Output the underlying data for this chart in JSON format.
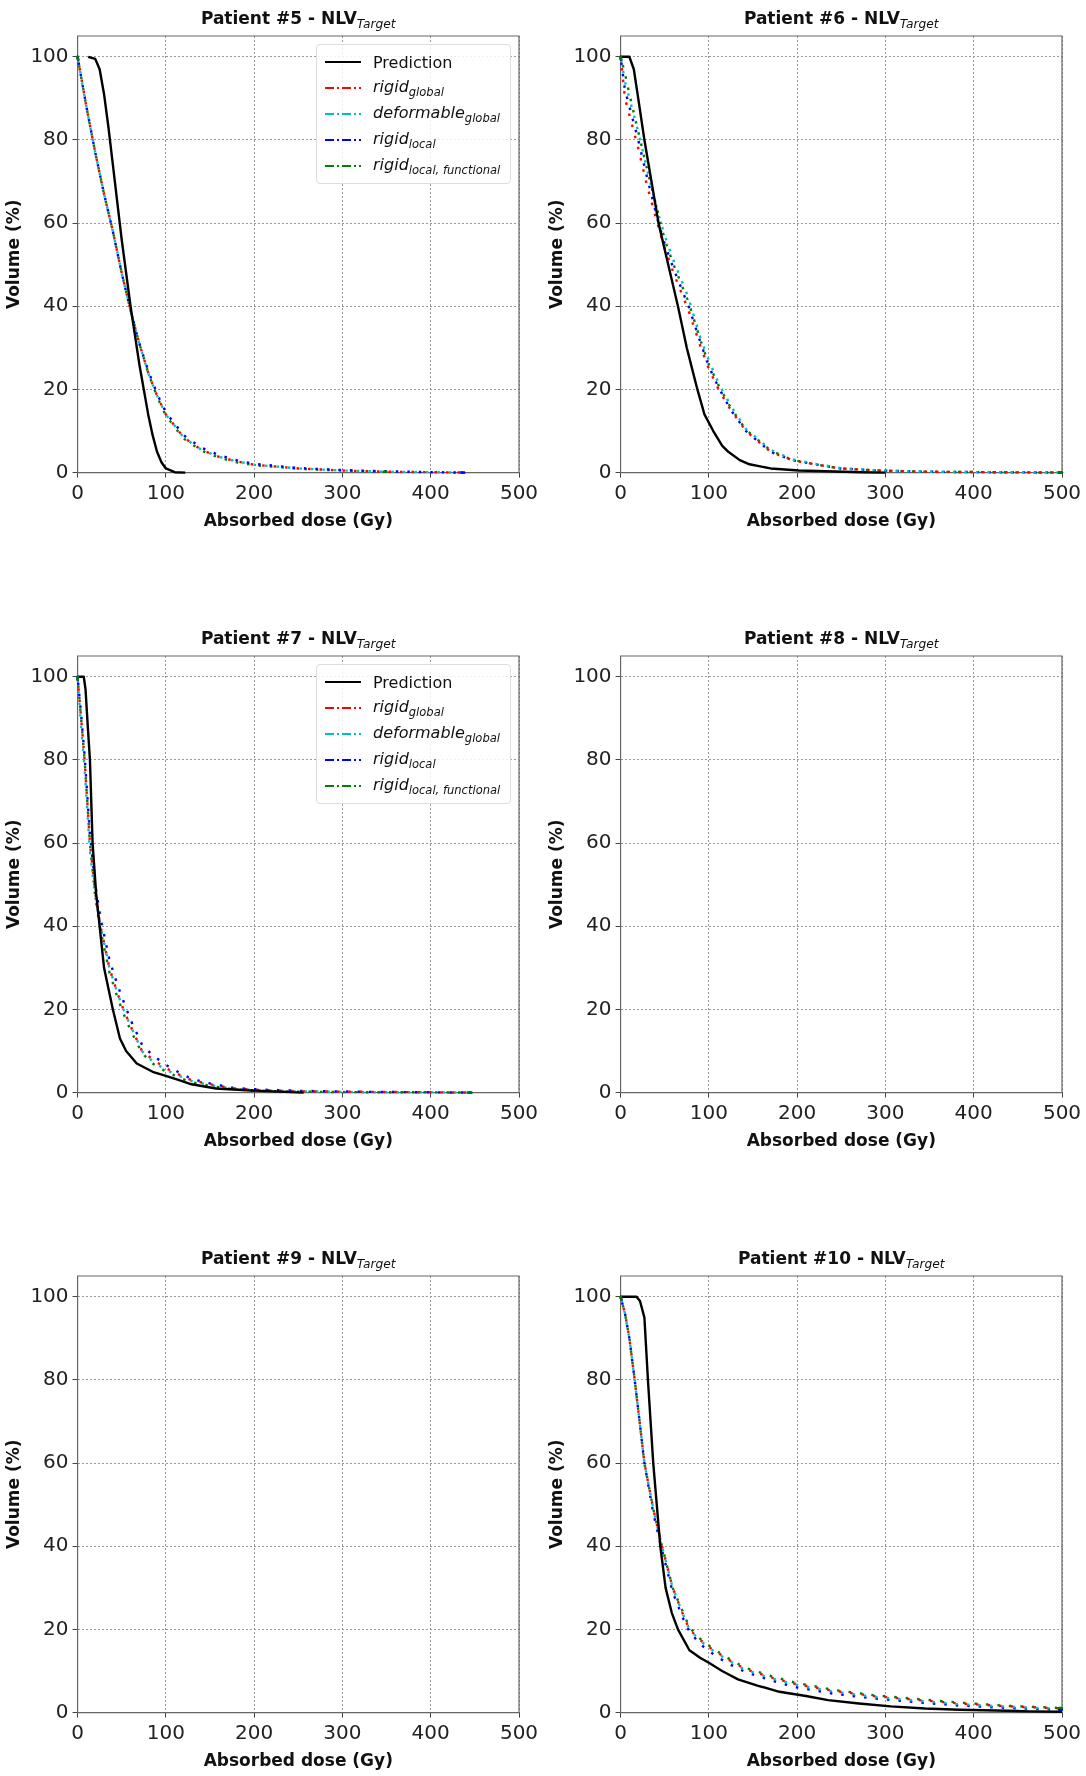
{
  "chart_data": [
    {
      "type": "line",
      "title": "Patient #5 - NLV$_{Target}$",
      "xlabel": "Absorbed dose (Gy)",
      "ylabel": "Volume (%)",
      "xlim": [
        0,
        500
      ],
      "ylim": [
        0,
        105
      ],
      "xticks": [
        0,
        100,
        200,
        300,
        400,
        500
      ],
      "yticks": [
        0,
        20,
        40,
        60,
        80,
        100
      ],
      "grid": true,
      "legend": "top right",
      "series": [
        {
          "name": "Prediction",
          "color": "#000000",
          "line_style": "solid",
          "x": [
            12,
            20,
            25,
            30,
            35,
            40,
            45,
            50,
            55,
            60,
            65,
            70,
            75,
            80,
            85,
            90,
            95,
            100,
            110,
            122
          ],
          "values": [
            100,
            99.5,
            97,
            91,
            83,
            74,
            65,
            56,
            48,
            40,
            33,
            26,
            20,
            14,
            9,
            5,
            2.5,
            1,
            0.1,
            0
          ]
        },
        {
          "name": "rigid$_{global}$",
          "color": "#ff0000",
          "line_style": "dashdot",
          "x": [
            0,
            5,
            10,
            20,
            30,
            40,
            50,
            60,
            70,
            80,
            90,
            100,
            120,
            140,
            160,
            180,
            200,
            250,
            300,
            350,
            400,
            438
          ],
          "values": [
            100,
            94,
            88,
            77,
            67,
            58,
            48,
            39,
            31,
            24,
            18.5,
            14,
            8.5,
            5.5,
            3.8,
            2.7,
            1.9,
            1,
            0.5,
            0.2,
            0.1,
            0
          ]
        },
        {
          "name": "deformable$_{global}$",
          "color": "#00bfbf",
          "line_style": "dashdot",
          "x": [
            0,
            5,
            10,
            20,
            30,
            40,
            50,
            60,
            70,
            80,
            90,
            100,
            120,
            140,
            160,
            180,
            200,
            250,
            300,
            350,
            400,
            438
          ],
          "values": [
            100,
            94,
            88,
            77,
            67,
            58,
            48,
            39,
            31,
            24,
            18.5,
            14,
            8.5,
            5.5,
            3.8,
            2.7,
            1.9,
            1,
            0.5,
            0.2,
            0.1,
            0
          ]
        },
        {
          "name": "rigid$_{local}$",
          "color": "#0000ff",
          "line_style": "dashdot",
          "x": [
            0,
            5,
            10,
            20,
            30,
            40,
            50,
            60,
            70,
            80,
            90,
            100,
            120,
            140,
            160,
            180,
            200,
            250,
            300,
            350,
            400,
            438
          ],
          "values": [
            100,
            94,
            88,
            77,
            67,
            58,
            48,
            39,
            31,
            24.5,
            19,
            14.5,
            9,
            6,
            4.2,
            3,
            2.1,
            1.1,
            0.6,
            0.3,
            0.1,
            0
          ]
        },
        {
          "name": "rigid$_{local, functional}$",
          "color": "#008000",
          "line_style": "dashdot",
          "x": [
            0,
            5,
            10,
            20,
            30,
            40,
            50,
            60,
            70,
            80,
            90,
            100,
            120,
            140,
            160,
            180,
            200,
            250,
            300,
            350
          ],
          "values": [
            100,
            94,
            88,
            77,
            67,
            58,
            48,
            39,
            31,
            24,
            18.3,
            13.7,
            8.2,
            5.3,
            3.6,
            2.5,
            1.8,
            0.9,
            0.5,
            0.2
          ]
        }
      ]
    },
    {
      "type": "line",
      "title": "Patient #6 - NLV$_{Target}$",
      "xlabel": "Absorbed dose (Gy)",
      "ylabel": "Volume (%)",
      "xlim": [
        0,
        500
      ],
      "ylim": [
        0,
        105
      ],
      "xticks": [
        0,
        100,
        200,
        300,
        400,
        500
      ],
      "yticks": [
        0,
        20,
        40,
        60,
        80,
        100
      ],
      "grid": true,
      "series": [
        {
          "color": "#000000",
          "line_style": "solid",
          "x": [
            0,
            10,
            15,
            20,
            27,
            35,
            43,
            54,
            65,
            75,
            87,
            95,
            105,
            115,
            122,
            135,
            146,
            170,
            202,
            273,
            300
          ],
          "values": [
            100,
            100,
            97,
            90,
            80,
            70,
            60,
            50,
            40,
            30,
            20,
            14,
            10,
            6.5,
            5,
            3,
            2,
            1,
            0.5,
            0.1,
            0
          ]
        },
        {
          "color": "#ff0000",
          "line_style": "dashdot",
          "x": [
            0,
            5,
            10,
            20,
            30,
            43,
            50,
            60,
            77,
            91,
            100,
            111,
            125,
            142,
            170,
            194,
            220,
            249,
            292,
            350,
            420,
            500
          ],
          "values": [
            100,
            90,
            86,
            78,
            69,
            59,
            54,
            48,
            39,
            30,
            25,
            20,
            15,
            10,
            5,
            3,
            2,
            1,
            0.5,
            0.2,
            0.1,
            0
          ]
        },
        {
          "color": "#00bfbf",
          "line_style": "dashdot",
          "x": [
            0,
            5,
            10,
            20,
            30,
            43,
            50,
            60,
            77,
            91,
            100,
            111,
            125,
            142,
            170,
            194,
            220,
            249,
            292,
            350,
            420,
            500
          ],
          "values": [
            100,
            94,
            90,
            82,
            73,
            62,
            57,
            51,
            42,
            32,
            27,
            21.5,
            16,
            10.5,
            5.5,
            3.2,
            2.1,
            1.1,
            0.5,
            0.2,
            0.1,
            0
          ]
        },
        {
          "color": "#0000ff",
          "line_style": "dashdot",
          "x": [
            0,
            5,
            10,
            20,
            30,
            43,
            50,
            60,
            77,
            91,
            100,
            111,
            125,
            142,
            170,
            194,
            220,
            249,
            292,
            350,
            420,
            500
          ],
          "values": [
            100,
            92,
            88,
            80,
            71,
            60,
            55,
            49,
            40,
            31,
            25.5,
            20.5,
            15,
            10,
            5,
            3,
            2,
            1,
            0.5,
            0.2,
            0.1,
            0
          ]
        },
        {
          "color": "#008000",
          "line_style": "dashdot",
          "x": [
            0,
            5,
            10,
            20,
            30,
            43,
            50,
            60,
            77,
            91,
            100,
            111,
            125,
            142,
            170,
            194,
            220,
            249,
            292,
            350,
            420,
            500
          ],
          "values": [
            100,
            96,
            91,
            82,
            73,
            62,
            56,
            50,
            41,
            31.5,
            26,
            21,
            15.5,
            10.3,
            5.3,
            3.1,
            2,
            1,
            0.5,
            0.2,
            0.1,
            0
          ]
        }
      ]
    },
    {
      "type": "line",
      "title": "Patient #7 - NLV$_{Target}$",
      "xlabel": "Absorbed dose (Gy)",
      "ylabel": "Volume (%)",
      "xlim": [
        0,
        500
      ],
      "ylim": [
        0,
        105
      ],
      "xticks": [
        0,
        100,
        200,
        300,
        400,
        500
      ],
      "yticks": [
        0,
        20,
        40,
        60,
        80,
        100
      ],
      "grid": true,
      "legend": "top right",
      "series": [
        {
          "name": "Prediction",
          "color": "#000000",
          "line_style": "solid",
          "x": [
            0,
            7,
            9,
            11,
            14,
            17,
            21,
            25,
            30,
            35,
            40,
            48,
            55,
            67,
            85,
            100,
            115,
            129,
            157,
            196,
            256
          ],
          "values": [
            100,
            100,
            97,
            90,
            80,
            60,
            48,
            40,
            30,
            25,
            20,
            13,
            10,
            7,
            5,
            4,
            3,
            2,
            1,
            0.5,
            0
          ]
        },
        {
          "name": "rigid$_{global}$",
          "color": "#ff0000",
          "line_style": "dashdot",
          "x": [
            0,
            4,
            8,
            14,
            20,
            26,
            36,
            45,
            52,
            60,
            73,
            85,
            99,
            115,
            129,
            150,
            177,
            210,
            256,
            320,
            380,
            446
          ],
          "values": [
            100,
            90,
            80,
            60,
            48,
            40,
            30,
            24,
            20,
            16,
            10,
            8,
            6,
            4.3,
            3,
            2,
            1,
            0.6,
            0.3,
            0.2,
            0.1,
            0
          ]
        },
        {
          "name": "deformable$_{global}$",
          "color": "#00bfbf",
          "line_style": "dashdot",
          "x": [
            0,
            4,
            8,
            14,
            20,
            26,
            36,
            45,
            52,
            60,
            73,
            85,
            99,
            115,
            129,
            150,
            177,
            210,
            256,
            320,
            380,
            446
          ],
          "values": [
            100,
            88,
            78,
            58,
            47,
            40,
            30,
            24,
            20,
            16,
            10,
            7.5,
            5.6,
            4,
            2.8,
            1.8,
            0.9,
            0.5,
            0.3,
            0.1,
            0.1,
            0
          ]
        },
        {
          "name": "rigid$_{local}$",
          "color": "#0000ff",
          "line_style": "dashdot",
          "x": [
            0,
            4,
            8,
            14,
            20,
            26,
            36,
            45,
            52,
            60,
            73,
            85,
            99,
            115,
            129,
            150,
            177,
            210,
            256,
            320,
            380,
            446
          ],
          "values": [
            100,
            91,
            81,
            62,
            50,
            42,
            32,
            26,
            22,
            17.5,
            11.5,
            9,
            6.8,
            4.8,
            3.3,
            2.2,
            1.1,
            0.7,
            0.4,
            0.2,
            0.1,
            0
          ]
        },
        {
          "name": "rigid$_{local, functional}$",
          "color": "#008000",
          "line_style": "dashdot",
          "x": [
            0,
            4,
            8,
            14,
            20,
            26,
            36,
            45,
            52,
            60,
            73,
            85,
            99,
            115,
            129,
            150,
            177,
            210,
            256,
            320,
            380,
            446
          ],
          "values": [
            100,
            90,
            80,
            60,
            47,
            39,
            29,
            23,
            19,
            15,
            9.5,
            7,
            5.2,
            3.6,
            2.5,
            1.6,
            0.8,
            0.4,
            0.2,
            0.1,
            0.1,
            0
          ]
        }
      ]
    },
    {
      "type": "line",
      "title": "Patient #8 - NLV$_{Target}$",
      "xlabel": "Absorbed dose (Gy)",
      "ylabel": "Volume (%)",
      "xlim": [
        0,
        500
      ],
      "ylim": [
        0,
        105
      ],
      "xticks": [
        0,
        100,
        200,
        300,
        400,
        500
      ],
      "yticks": [
        0,
        20,
        40,
        60,
        80,
        100
      ],
      "grid": true
    },
    {
      "type": "line",
      "title": "Patient #9 - NLV$_{Target}$",
      "xlabel": "Absorbed dose (Gy)",
      "ylabel": "Volume (%)",
      "xlim": [
        0,
        500
      ],
      "ylim": [
        0,
        105
      ],
      "xticks": [
        0,
        100,
        200,
        300,
        400,
        500
      ],
      "yticks": [
        0,
        20,
        40,
        60,
        80,
        100
      ],
      "grid": true
    },
    {
      "type": "line",
      "title": "Patient #10 - NLV$_{Target}$",
      "xlabel": "Absorbed dose (Gy)",
      "ylabel": "Volume (%)",
      "xlim": [
        0,
        500
      ],
      "ylim": [
        0,
        105
      ],
      "xticks": [
        0,
        100,
        200,
        300,
        400,
        500
      ],
      "yticks": [
        0,
        20,
        40,
        60,
        80,
        100
      ],
      "grid": true,
      "series": [
        {
          "color": "#000000",
          "line_style": "solid",
          "x": [
            0,
            18,
            22,
            27,
            31,
            37,
            45,
            51,
            58,
            65,
            78,
            90,
            100,
            115,
            133,
            155,
            180,
            210,
            235,
            270,
            306,
            345,
            384,
            425,
            463,
            500
          ],
          "values": [
            100,
            100,
            99,
            95,
            80,
            60,
            40,
            30,
            24,
            20,
            15,
            13.2,
            12,
            10,
            8,
            6.5,
            5,
            4,
            3,
            2.2,
            1.5,
            1,
            0.7,
            0.5,
            0.3,
            0.2
          ]
        },
        {
          "color": "#ff0000",
          "line_style": "dashdot",
          "x": [
            0,
            5,
            10,
            16,
            21,
            27,
            37,
            47,
            59,
            70,
            78,
            90,
            102,
            120,
            141,
            170,
            196,
            240,
            286,
            340,
            384,
            440,
            500
          ],
          "values": [
            100,
            96,
            90,
            80,
            71,
            60,
            49,
            40,
            30,
            24,
            20,
            17.5,
            15.5,
            13,
            10.5,
            8.5,
            7,
            5.3,
            4,
            3,
            2.2,
            1.5,
            1
          ]
        },
        {
          "color": "#00bfbf",
          "line_style": "dashdot",
          "x": [
            0,
            5,
            10,
            16,
            21,
            27,
            37,
            47,
            59,
            70,
            78,
            90,
            102,
            120,
            141,
            170,
            196,
            240,
            286,
            340,
            384,
            440,
            500
          ],
          "values": [
            100,
            96,
            90,
            80,
            71,
            60,
            49,
            40,
            30,
            24,
            20,
            17.3,
            15.3,
            12.8,
            10.3,
            8.3,
            6.8,
            5.1,
            3.8,
            2.8,
            2,
            1.4,
            0.9
          ]
        },
        {
          "color": "#0000ff",
          "line_style": "dashdot",
          "x": [
            0,
            5,
            10,
            16,
            21,
            27,
            37,
            47,
            59,
            70,
            78,
            90,
            102,
            120,
            141,
            170,
            196,
            240,
            286,
            340,
            384,
            440,
            500
          ],
          "values": [
            100,
            96,
            90,
            80,
            71,
            60,
            48,
            39,
            29,
            23,
            19.5,
            16.5,
            14.5,
            12,
            9.8,
            7.8,
            6.2,
            4.6,
            3.4,
            2.4,
            1.7,
            1.1,
            0.7
          ]
        },
        {
          "color": "#008000",
          "line_style": "dashdot",
          "x": [
            0,
            5,
            10,
            16,
            21,
            27,
            37,
            47,
            59,
            70,
            78,
            90,
            102,
            120,
            141,
            170,
            196,
            240,
            286,
            340,
            384,
            440,
            500
          ],
          "values": [
            100,
            96,
            90,
            80,
            71,
            60,
            49,
            40,
            30,
            24.5,
            20.5,
            17.8,
            15.8,
            13.3,
            10.8,
            8.8,
            7.3,
            5.5,
            4.2,
            3.2,
            2.4,
            1.6,
            1.1
          ]
        }
      ]
    }
  ]
}
